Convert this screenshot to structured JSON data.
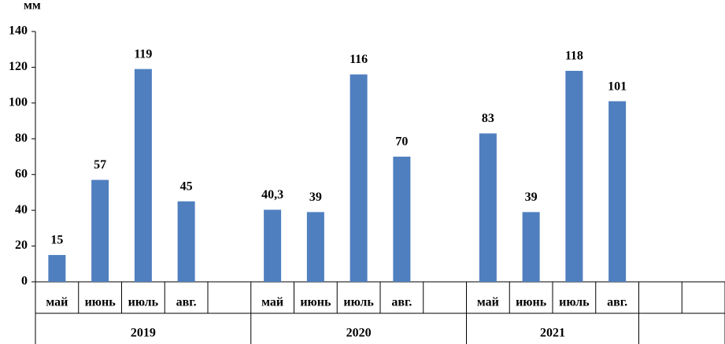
{
  "chart_data": {
    "type": "bar",
    "y_label": "мм",
    "color": "#4f7fbf",
    "ylim": [
      0,
      140
    ],
    "yticks": [
      0,
      20,
      40,
      60,
      80,
      100,
      120,
      140
    ],
    "grid": false,
    "groups": [
      {
        "name": "2019",
        "categories": [
          "май",
          "июнь",
          "июль",
          "авг.",
          null
        ],
        "values": [
          15,
          57,
          119,
          45,
          null
        ],
        "value_labels": [
          "15",
          "57",
          "119",
          "45",
          null
        ]
      },
      {
        "name": "2020",
        "categories": [
          "май",
          "июнь",
          "июль",
          "авг.",
          null
        ],
        "values": [
          40.3,
          39,
          116,
          70,
          null
        ],
        "value_labels": [
          "40,3",
          "39",
          "116",
          "70",
          null
        ]
      },
      {
        "name": "2021",
        "categories": [
          "май",
          "июнь",
          "июль",
          "авг."
        ],
        "values": [
          83,
          39,
          118,
          101
        ],
        "value_labels": [
          "83",
          "39",
          "118",
          "101"
        ]
      },
      {
        "name": null,
        "categories": [
          null,
          null
        ],
        "values": [
          null,
          null
        ],
        "value_labels": [
          null,
          null
        ]
      }
    ]
  }
}
